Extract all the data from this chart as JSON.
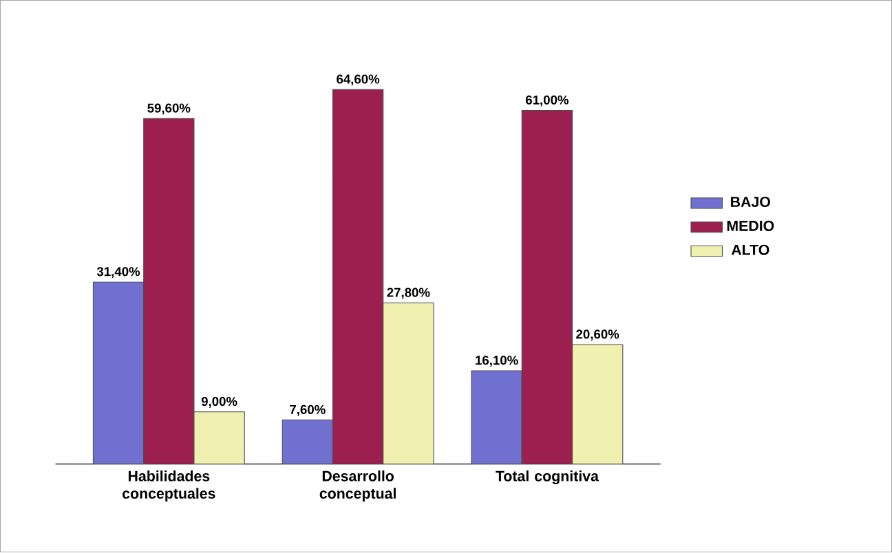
{
  "chart_data": {
    "type": "bar",
    "categories": [
      "Habilidades conceptuales",
      "Desarrollo conceptual",
      "Total cognitiva"
    ],
    "series": [
      {
        "name": "BAJO",
        "color": "#7070d0",
        "values": [
          31.4,
          7.6,
          16.1
        ],
        "value_labels": [
          "31,40%",
          "7,60%",
          "16,10%"
        ]
      },
      {
        "name": "MEDIO",
        "color": "#9c1f4f",
        "values": [
          59.6,
          64.6,
          61.0
        ],
        "value_labels": [
          "59,60%",
          "64,60%",
          "61,00%"
        ]
      },
      {
        "name": "ALTO",
        "color": "#f0f0b0",
        "values": [
          9.0,
          27.8,
          20.6
        ],
        "value_labels": [
          "9,00%",
          "27,80%",
          "20,60%"
        ]
      }
    ],
    "legend": "right"
  }
}
